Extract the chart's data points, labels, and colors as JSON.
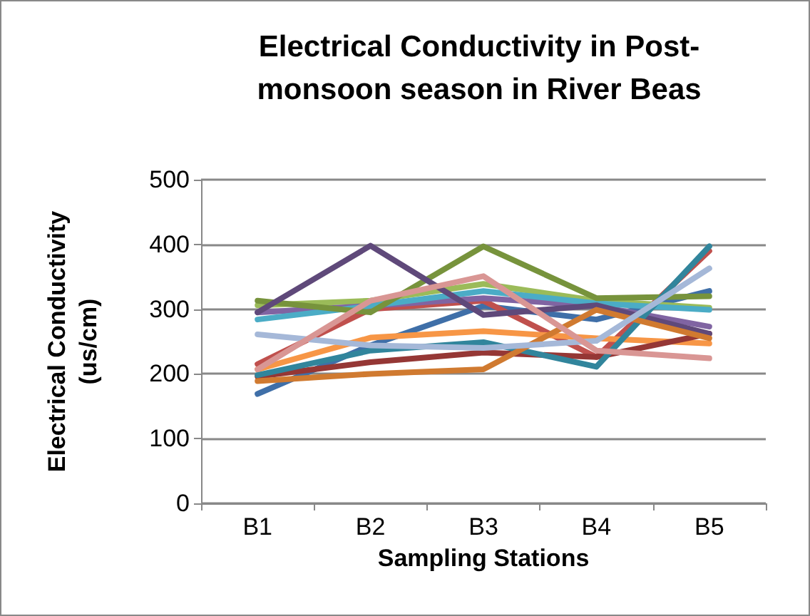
{
  "chart_data": {
    "type": "line",
    "title": "Electrical Conductivity in Post-\nmonsoon season in River Beas",
    "xlabel": "Sampling Stations",
    "ylabel": "Electrical Conductivity\n(us/cm)",
    "categories": [
      "B1",
      "B2",
      "B3",
      "B4",
      "B5"
    ],
    "ylim": [
      0,
      500
    ],
    "yticks": [
      0,
      100,
      200,
      300,
      400,
      500
    ],
    "grid": "y",
    "marker": "none",
    "line_style": "solid",
    "series": [
      {
        "color": "#3f6fa8",
        "values": [
          169,
          244,
          305,
          284,
          328
        ]
      },
      {
        "color": "#c0504d",
        "values": [
          215,
          300,
          313,
          226,
          390
        ]
      },
      {
        "color": "#9bbb59",
        "values": [
          306,
          313,
          339,
          313,
          302
        ]
      },
      {
        "color": "#8064a2",
        "values": [
          295,
          305,
          317,
          305,
          273
        ]
      },
      {
        "color": "#4bacc6",
        "values": [
          284,
          305,
          328,
          309,
          299
        ]
      },
      {
        "color": "#f79646",
        "values": [
          207,
          256,
          266,
          255,
          247
        ]
      },
      {
        "color": "#953735",
        "values": [
          196,
          218,
          233,
          226,
          262
        ]
      },
      {
        "color": "#77933c",
        "values": [
          313,
          295,
          397,
          317,
          320
        ]
      },
      {
        "color": "#5f497a",
        "values": [
          295,
          398,
          291,
          306,
          262
        ]
      },
      {
        "color": "#31859c",
        "values": [
          198,
          236,
          249,
          211,
          397
        ]
      },
      {
        "color": "#d07a30",
        "values": [
          189,
          200,
          207,
          299,
          255
        ]
      },
      {
        "color": "#a5b8d8",
        "values": [
          261,
          244,
          240,
          251,
          363
        ]
      },
      {
        "color": "#d99694",
        "values": [
          207,
          313,
          351,
          236,
          224
        ]
      }
    ]
  }
}
